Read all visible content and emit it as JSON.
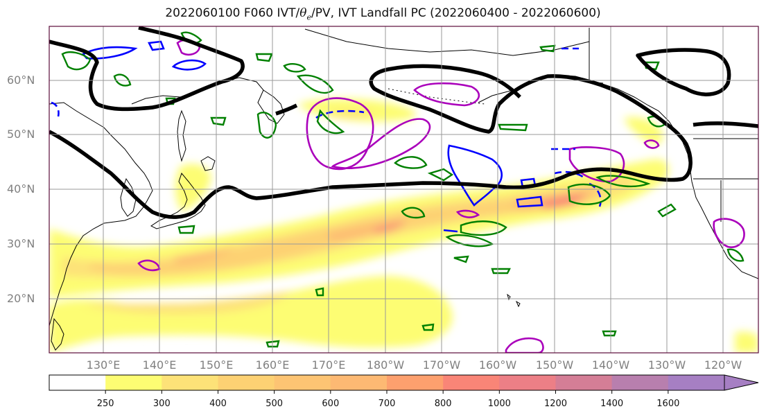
{
  "title": {
    "prefix": "2022060100 F060 IVT/",
    "theta": "θ",
    "theta_sub": "e",
    "suffix": "/PV, IVT Landfall PC (2022060400 - 2022060600)"
  },
  "lat_labels": [
    "60°N",
    "50°N",
    "40°N",
    "30°N",
    "20°N"
  ],
  "lon_labels": [
    "130°E",
    "140°E",
    "150°E",
    "160°E",
    "170°E",
    "180°W",
    "170°W",
    "160°W",
    "150°W",
    "140°W",
    "130°W",
    "120°W"
  ],
  "colorbar": {
    "levels": [
      "250",
      "300",
      "400",
      "500",
      "600",
      "700",
      "800",
      "1000",
      "1200",
      "1400",
      "1600"
    ],
    "colors": [
      "#ffffff",
      "#fdfd73",
      "#fde278",
      "#fdd173",
      "#fdc473",
      "#fdb973",
      "#fda06e",
      "#f98577",
      "#ec7f86",
      "#d47e96",
      "#b87fae",
      "#a67fc3"
    ]
  },
  "ivt_colors": [
    "#fdfd73",
    "#fde278",
    "#fdd173",
    "#fdb973",
    "#f98577"
  ],
  "contour_colors": {
    "theta_e": "#000000",
    "pv_positive": "#0000ff",
    "pv_landfall": "#aa00bb",
    "green": "#008000"
  }
}
